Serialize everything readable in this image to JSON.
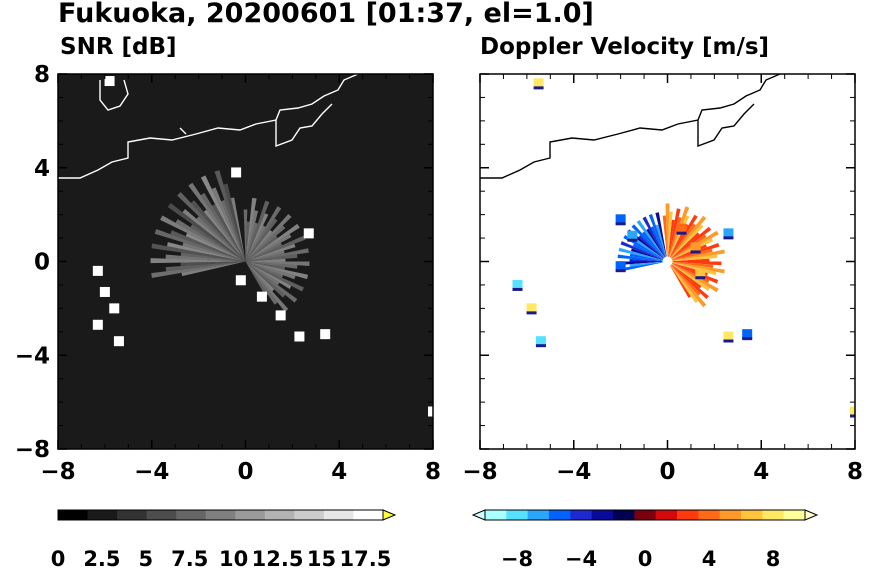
{
  "title": "Fukuoka, 20200601 [01:37, el=1.0]",
  "panels": [
    {
      "id": "snr",
      "subtitle": "SNR [dB]"
    },
    {
      "id": "doppler",
      "subtitle": "Doppler Velocity [m/s]"
    }
  ],
  "chart_data": [
    {
      "type": "heatmap",
      "title": "SNR [dB]",
      "xlim": [
        -8,
        8
      ],
      "ylim": [
        -8,
        8
      ],
      "x_ticks": [
        -8,
        -4,
        0,
        4,
        8
      ],
      "y_ticks": [
        8,
        4,
        0,
        -4,
        -8
      ],
      "x_tick_labels": [
        "−8",
        "−4",
        "0",
        "4",
        "8"
      ],
      "y_tick_labels": [
        "8",
        "4",
        "0",
        "−4",
        "−8"
      ],
      "background": "#1a1a1a",
      "colorbar": {
        "range": [
          0,
          18.5
        ],
        "extend": "max",
        "tick_values": [
          0,
          2.5,
          5,
          7.5,
          10,
          12.5,
          15,
          17.5
        ],
        "tick_labels": [
          "0",
          "2.5",
          "5",
          "7.5",
          "10",
          "12.5",
          "15",
          "17.5"
        ],
        "colors": [
          "#000000",
          "#1a1a1a",
          "#333333",
          "#4d4d4d",
          "#666666",
          "#808080",
          "#999999",
          "#b3b3b3",
          "#cccccc",
          "#e6e6e6",
          "#ffffff"
        ],
        "extend_color": "#ffff33"
      },
      "echoes": [
        {
          "x": -6.3,
          "y": -0.4,
          "value": 18.5
        },
        {
          "x": -6.0,
          "y": -1.3,
          "value": 18.5
        },
        {
          "x": -5.6,
          "y": -2.0,
          "value": 18.5
        },
        {
          "x": -6.3,
          "y": -2.7,
          "value": 18.5
        },
        {
          "x": -5.4,
          "y": -3.4,
          "value": 18.5
        },
        {
          "x": -0.2,
          "y": -0.8,
          "value": 18.5
        },
        {
          "x": 0.7,
          "y": -1.5,
          "value": 18.5
        },
        {
          "x": 1.5,
          "y": -2.3,
          "value": 18.5
        },
        {
          "x": 2.3,
          "y": -3.2,
          "value": 18.5
        },
        {
          "x": 3.4,
          "y": -3.1,
          "value": 18.5
        },
        {
          "x": 2.7,
          "y": 1.2,
          "value": 18.5
        },
        {
          "x": -0.4,
          "y": 3.8,
          "value": 18.5
        },
        {
          "x": -5.8,
          "y": 7.7,
          "value": 18.5
        },
        {
          "x": 8.0,
          "y": -6.4,
          "value": 18.5
        }
      ]
    },
    {
      "type": "heatmap",
      "title": "Doppler Velocity [m/s]",
      "xlim": [
        -8,
        8
      ],
      "ylim": [
        -8,
        8
      ],
      "x_ticks": [
        -8,
        -4,
        0,
        4,
        8
      ],
      "y_ticks": [
        8,
        4,
        0,
        -4,
        -8
      ],
      "x_tick_labels": [
        "−8",
        "−4",
        "0",
        "4",
        "8"
      ],
      "y_tick_labels": [
        "8",
        "4",
        "0",
        "−4",
        "−8"
      ],
      "background": "#ffffff",
      "colorbar": {
        "range": [
          -10,
          10
        ],
        "extend": "both",
        "tick_values": [
          -8,
          -4,
          0,
          4,
          8
        ],
        "tick_labels": [
          "−8",
          "−4",
          "0",
          "4",
          "8"
        ],
        "colors": [
          "#aaffff",
          "#55e1ff",
          "#2aa6ff",
          "#0063ff",
          "#1d2ad0",
          "#0a0a9a",
          "#000050",
          "#7a0010",
          "#d40a0a",
          "#ff3a0e",
          "#ff6a18",
          "#ff9a28",
          "#ffc43c",
          "#ffe864",
          "#ffff99"
        ],
        "extend_color_low": "#ccffff",
        "extend_color_high": "#ffffcc"
      },
      "echoes": [
        {
          "x": -2.0,
          "y": 1.8,
          "value": -6
        },
        {
          "x": -1.5,
          "y": 1.1,
          "value": -7
        },
        {
          "x": -2.0,
          "y": -0.2,
          "value": -5
        },
        {
          "x": 1.2,
          "y": 0.6,
          "value": 5
        },
        {
          "x": 1.4,
          "y": -0.5,
          "value": 6
        },
        {
          "x": 0.6,
          "y": 1.4,
          "value": 4
        },
        {
          "x": -6.4,
          "y": -1.0,
          "value": -8
        },
        {
          "x": -5.8,
          "y": -2.0,
          "value": 8
        },
        {
          "x": -5.4,
          "y": -3.4,
          "value": -8
        },
        {
          "x": 2.6,
          "y": -3.2,
          "value": 8
        },
        {
          "x": 3.4,
          "y": -3.1,
          "value": -6
        },
        {
          "x": 2.6,
          "y": 1.2,
          "value": -7
        },
        {
          "x": -5.5,
          "y": 7.6,
          "value": 8
        },
        {
          "x": 8.0,
          "y": -6.4,
          "value": 8
        }
      ]
    }
  ]
}
